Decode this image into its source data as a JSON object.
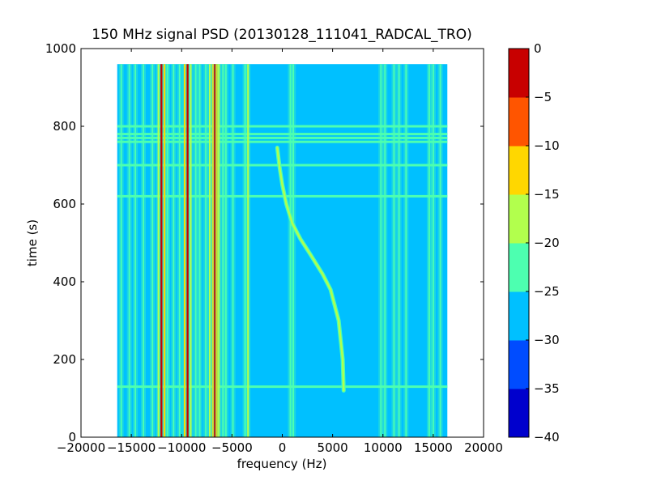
{
  "chart_data": {
    "type": "heatmap",
    "title": "150 MHz signal PSD (20130128_111041_RADCAL_TRO)",
    "xlabel": "frequency (Hz)",
    "ylabel": "time (s)",
    "xlim": [
      -20000,
      20000
    ],
    "ylim": [
      0,
      1000
    ],
    "x_ticks": [
      -20000,
      -15000,
      -10000,
      -5000,
      0,
      5000,
      10000,
      15000,
      20000
    ],
    "x_tick_labels": [
      "−20000",
      "−15000",
      "−10000",
      "−5000",
      "0",
      "5000",
      "10000",
      "15000",
      "20000"
    ],
    "y_ticks": [
      0,
      200,
      400,
      600,
      800,
      1000
    ],
    "y_tick_labels": [
      "0",
      "200",
      "400",
      "600",
      "800",
      "1000"
    ],
    "data_extent": {
      "x": [
        -16400,
        16400
      ],
      "y": [
        0,
        960
      ]
    },
    "background_level": -27.5,
    "colorbar": {
      "levels": [
        -40,
        -35,
        -30,
        -25,
        -20,
        -15,
        -10,
        -5,
        0
      ],
      "tick_labels": [
        "−40",
        "−35",
        "−30",
        "−25",
        "−20",
        "−15",
        "−10",
        "−5",
        "0"
      ],
      "colors": [
        "#0000cd",
        "#004cff",
        "#00c0ff",
        "#4dffb0",
        "#b2ff4d",
        "#ffd700",
        "#ff5500",
        "#c80000"
      ]
    },
    "vertical_lines": [
      {
        "freq": -16000,
        "level": -22.5
      },
      {
        "freq": -15200,
        "level": -22.5
      },
      {
        "freq": -14600,
        "level": -22.5
      },
      {
        "freq": -13800,
        "level": -22.5
      },
      {
        "freq": -12900,
        "level": -22.5
      },
      {
        "freq": -12300,
        "level": -17.5
      },
      {
        "freq": -12000,
        "level": -2.5
      },
      {
        "freq": -11700,
        "level": -12.5
      },
      {
        "freq": -11400,
        "level": -22.5
      },
      {
        "freq": -10800,
        "level": -22.5
      },
      {
        "freq": -10200,
        "level": -22.5
      },
      {
        "freq": -9700,
        "level": -12.5
      },
      {
        "freq": -9400,
        "level": -2.5
      },
      {
        "freq": -9100,
        "level": -17.5
      },
      {
        "freq": -8600,
        "level": -22.5
      },
      {
        "freq": -8200,
        "level": -22.5
      },
      {
        "freq": -7600,
        "level": -22.5
      },
      {
        "freq": -7200,
        "level": -17.5
      },
      {
        "freq": -6900,
        "level": -12.5
      },
      {
        "freq": -6700,
        "level": -2.5
      },
      {
        "freq": -6500,
        "level": -12.5
      },
      {
        "freq": -6300,
        "level": -17.5
      },
      {
        "freq": -5900,
        "level": -22.5
      },
      {
        "freq": -5600,
        "level": -22.5
      },
      {
        "freq": -4900,
        "level": -22.5
      },
      {
        "freq": -3700,
        "level": -22.5
      },
      {
        "freq": -3400,
        "level": -17.5
      },
      {
        "freq": 800,
        "level": -22.5
      },
      {
        "freq": 1100,
        "level": -22.5
      },
      {
        "freq": 9800,
        "level": -22.5
      },
      {
        "freq": 10200,
        "level": -22.5
      },
      {
        "freq": 11100,
        "level": -22.5
      },
      {
        "freq": 11600,
        "level": -22.5
      },
      {
        "freq": 12300,
        "level": -22.5
      },
      {
        "freq": 14600,
        "level": -22.5
      },
      {
        "freq": 15000,
        "level": -22.5
      },
      {
        "freq": 15700,
        "level": -22.5
      }
    ],
    "horizontal_lines": [
      {
        "time": 800,
        "level": -22.5
      },
      {
        "time": 780,
        "level": -22.5
      },
      {
        "time": 770,
        "level": -22.5
      },
      {
        "time": 760,
        "level": -22.5
      },
      {
        "time": 700,
        "level": -22.5
      },
      {
        "time": 620,
        "level": -22.5
      },
      {
        "time": 130,
        "level": -22.5
      }
    ],
    "signal_track": {
      "level": -17.5,
      "points": [
        {
          "t": 120,
          "f": 6100
        },
        {
          "t": 200,
          "f": 6000
        },
        {
          "t": 300,
          "f": 5600
        },
        {
          "t": 380,
          "f": 4800
        },
        {
          "t": 420,
          "f": 4000
        },
        {
          "t": 470,
          "f": 2800
        },
        {
          "t": 510,
          "f": 1800
        },
        {
          "t": 550,
          "f": 1000
        },
        {
          "t": 600,
          "f": 400
        },
        {
          "t": 650,
          "f": 0
        },
        {
          "t": 700,
          "f": -300
        },
        {
          "t": 745,
          "f": -500
        }
      ]
    }
  }
}
